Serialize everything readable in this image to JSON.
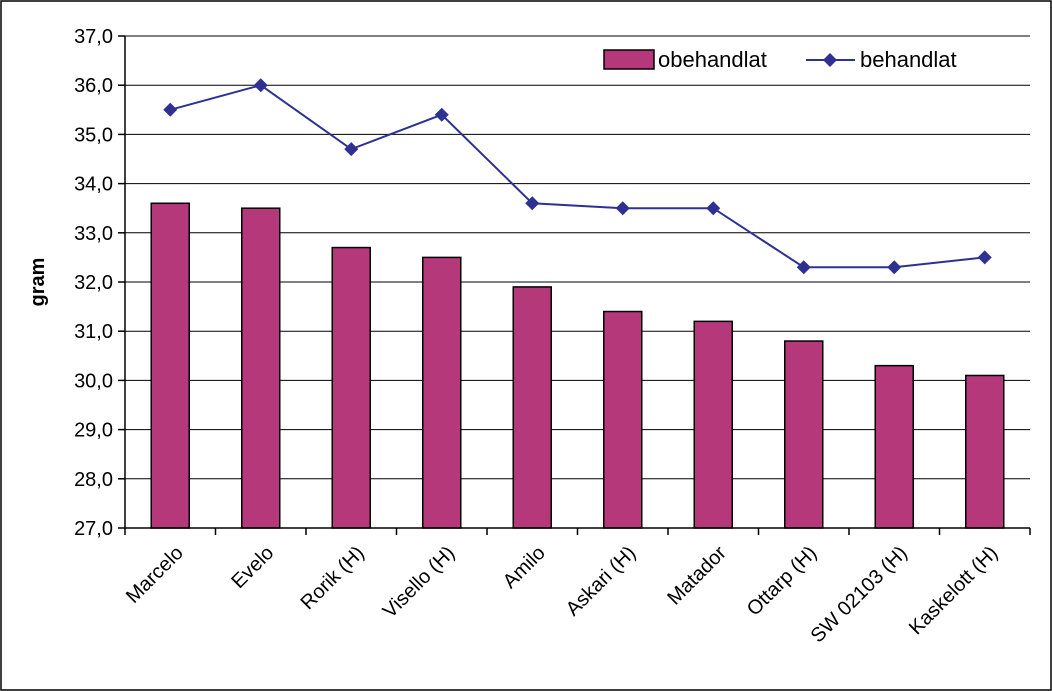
{
  "chart_data": {
    "type": "bar",
    "title": "",
    "xlabel": "",
    "ylabel": "gram",
    "ylim": [
      27.0,
      37.0
    ],
    "yticks": [
      "27,0",
      "28,0",
      "29,0",
      "30,0",
      "31,0",
      "32,0",
      "33,0",
      "34,0",
      "35,0",
      "36,0",
      "37,0"
    ],
    "grid": true,
    "legend_position": "top-right",
    "categories": [
      "Marcelo",
      "Evelo",
      "Rorik (H)",
      "Visello (H)",
      "Amilo",
      "Askari (H)",
      "Matador",
      "Ottarp (H)",
      "SW 02103 (H)",
      "Kaskelott (H)"
    ],
    "series": [
      {
        "name": "obehandlat",
        "kind": "bar",
        "color": "#B5397A",
        "values": [
          33.6,
          33.5,
          32.7,
          32.5,
          31.9,
          31.4,
          31.2,
          30.8,
          30.3,
          30.1
        ]
      },
      {
        "name": "behandlat",
        "kind": "line",
        "color": "#2E3192",
        "values": [
          35.5,
          36.0,
          34.7,
          35.4,
          33.6,
          33.5,
          33.5,
          32.3,
          32.3,
          32.5
        ]
      }
    ]
  }
}
